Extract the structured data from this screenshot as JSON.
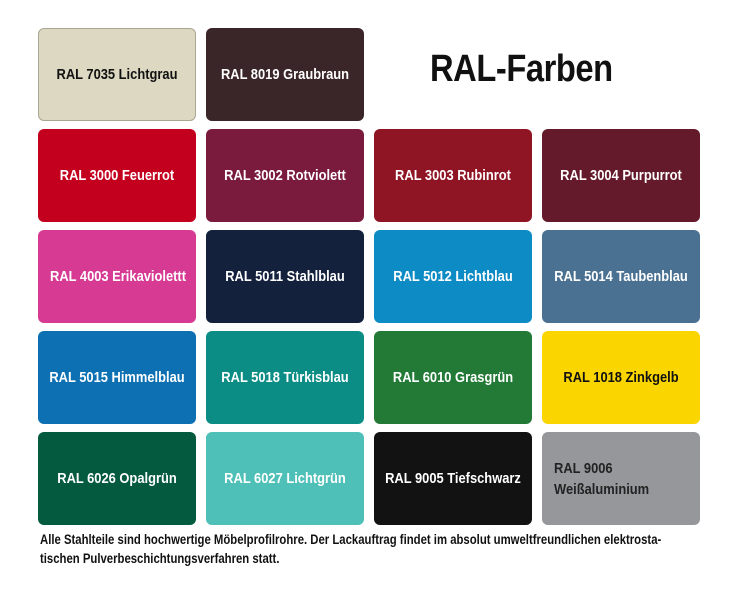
{
  "title": "RAL-Farben",
  "swatches": [
    {
      "label": "RAL 7035 Lichtgrau",
      "color": "#dcd8c2",
      "text_color": "#111111"
    },
    {
      "label": "RAL 8019 Graubraun",
      "color": "#3a2628",
      "text_color": "#ffffff"
    },
    {
      "label": "RAL 3000 Feuerrot",
      "color": "#c4001f",
      "text_color": "#ffffff"
    },
    {
      "label": "RAL 3002 Rotviolett",
      "color": "#7a1a3c",
      "text_color": "#ffffff"
    },
    {
      "label": "RAL 3003 Rubinrot",
      "color": "#8f1525",
      "text_color": "#ffffff"
    },
    {
      "label": "RAL 3004 Purpurrot",
      "color": "#641a2a",
      "text_color": "#ffffff"
    },
    {
      "label": "RAL 4003 Erikaviolettt",
      "color": "#d63a93",
      "text_color": "#ffffff"
    },
    {
      "label": "RAL 5011 Stahlblau",
      "color": "#14213d",
      "text_color": "#ffffff"
    },
    {
      "label": "RAL 5012 Lichtblau",
      "color": "#0c8bc4",
      "text_color": "#ffffff"
    },
    {
      "label": "RAL 5014 Taubenblau",
      "color": "#4b7192",
      "text_color": "#ffffff"
    },
    {
      "label": "RAL 5015 Himmelblau",
      "color": "#0d70b3",
      "text_color": "#ffffff"
    },
    {
      "label": "RAL 5018 Türkisblau",
      "color": "#0b8d86",
      "text_color": "#ffffff"
    },
    {
      "label": "RAL 6010 Grasgrün",
      "color": "#227a36",
      "text_color": "#ffffff"
    },
    {
      "label": "RAL 1018 Zinkgelb",
      "color": "#fbd500",
      "text_color": "#111111"
    },
    {
      "label": "RAL 6026 Opalgrün",
      "color": "#045a3f",
      "text_color": "#ffffff"
    },
    {
      "label": "RAL 6027 Lichtgrün",
      "color": "#4ec0b8",
      "text_color": "#ffffff"
    },
    {
      "label": "RAL 9005 Tiefschwarz",
      "color": "#121212",
      "text_color": "#ffffff"
    },
    {
      "label": "RAL 9006 Weißaluminium",
      "color": "#95979a",
      "text_color": "#222222"
    }
  ],
  "footer": "Alle Stahlteile sind hochwertige Möbelprofilrohre. Der Lackauftrag findet im absolut umweltfreundlichen elektrosta-tischen Pulverbeschichtungsverfahren statt."
}
